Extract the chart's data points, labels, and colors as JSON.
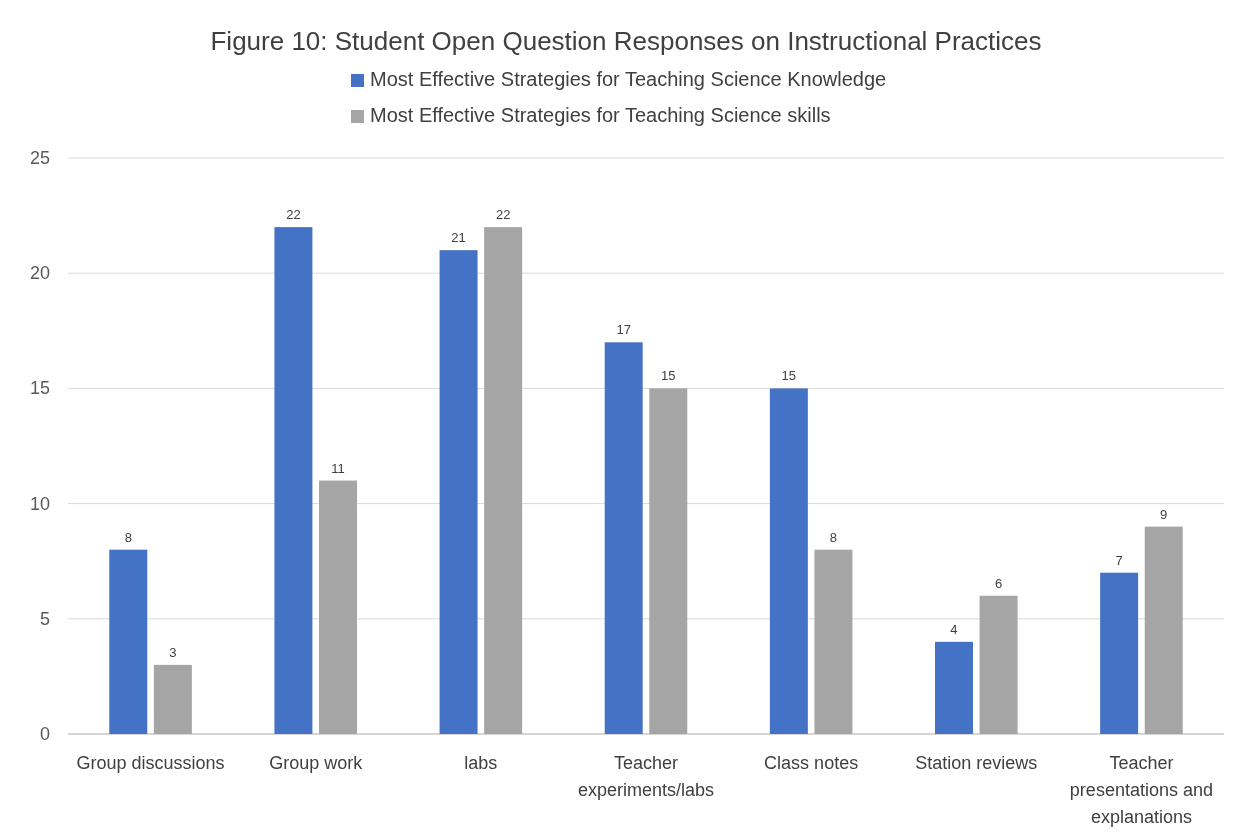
{
  "chart_data": {
    "type": "bar",
    "title": "Figure 10: Student Open Question Responses on Instructional Practices",
    "categories": [
      "Group discussions",
      "Group work",
      "labs",
      "Teacher experiments/labs",
      "Class notes",
      "Station reviews",
      "Teacher presentations and explanations"
    ],
    "series": [
      {
        "name": "Most Effective Strategies for Teaching Science Knowledge",
        "color": "#4472c4",
        "values": [
          8,
          22,
          21,
          17,
          15,
          4,
          7
        ]
      },
      {
        "name": "Most Effective Strategies for Teaching Science skills",
        "color": "#a5a5a5",
        "values": [
          3,
          11,
          22,
          15,
          8,
          6,
          9
        ]
      }
    ],
    "ylim": [
      0,
      25
    ],
    "yticks": [
      0,
      5,
      10,
      15,
      20,
      25
    ],
    "grid": "y",
    "legend": "top",
    "data_labels": true
  }
}
